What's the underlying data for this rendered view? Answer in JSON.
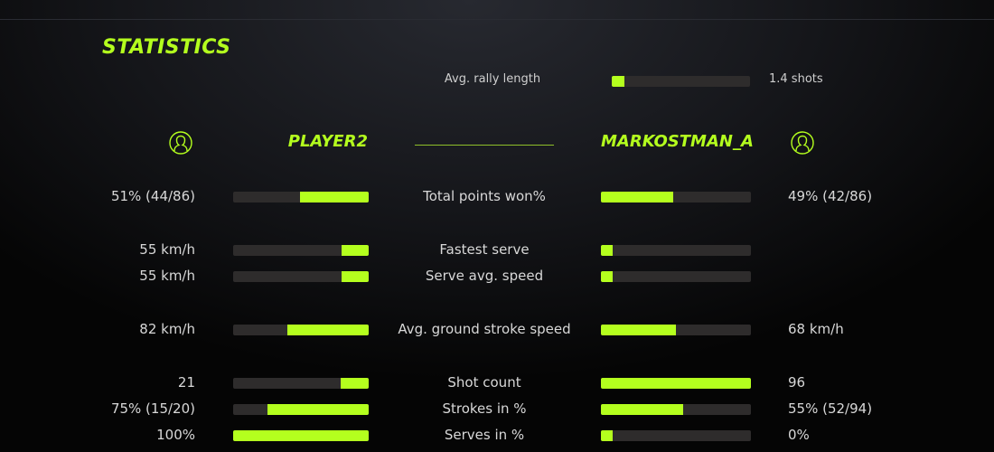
{
  "title": "STATISTICS",
  "rally": {
    "label": "Avg. rally length",
    "value": "1.4 shots",
    "fill_percent": 9
  },
  "accent_color": "#b4ff1e",
  "players": {
    "left": {
      "name": "PLAYER2",
      "icon": "user-circle-icon"
    },
    "right": {
      "name": "MARKOSTMAN_A",
      "icon": "user-circle-icon"
    }
  },
  "rows": [
    {
      "label": "Total points won%",
      "left": "51% (44/86)",
      "right": "49% (42/86)",
      "left_fill": 51,
      "right_fill": 48
    },
    {
      "label": "Fastest serve",
      "left": "55 km/h",
      "right": "",
      "left_fill": 20,
      "right_fill": 8
    },
    {
      "label": "Serve avg. speed",
      "left": "55 km/h",
      "right": "",
      "left_fill": 20,
      "right_fill": 8
    },
    {
      "label": "Avg. ground stroke speed",
      "left": "82 km/h",
      "right": "68 km/h",
      "left_fill": 60,
      "right_fill": 50
    },
    {
      "label": "Shot count",
      "left": "21",
      "right": "96",
      "left_fill": 21,
      "right_fill": 100
    },
    {
      "label": "Strokes in %",
      "left": "75% (15/20)",
      "right": "55% (52/94)",
      "left_fill": 75,
      "right_fill": 55
    },
    {
      "label": "Serves in %",
      "left": "100%",
      "right": "0%",
      "left_fill": 100,
      "right_fill": 8
    }
  ]
}
